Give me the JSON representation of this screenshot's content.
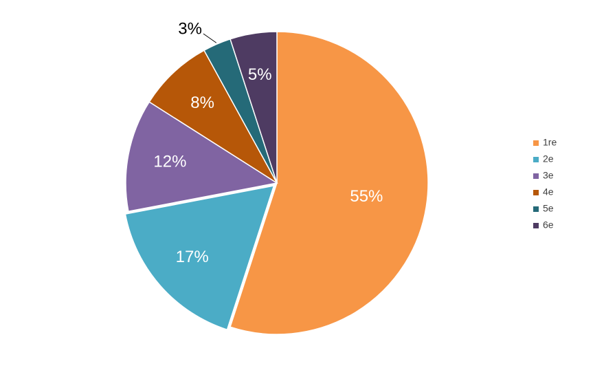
{
  "chart_data": {
    "type": "pie",
    "categories": [
      "1re",
      "2e",
      "3e",
      "4e",
      "5e",
      "6e"
    ],
    "values": [
      55,
      17,
      12,
      8,
      3,
      5
    ],
    "value_labels": [
      "55%",
      "17%",
      "12%",
      "8%",
      "3%",
      "5%"
    ],
    "colors": [
      "#f79646",
      "#4bacc6",
      "#8064a2",
      "#b65708",
      "#256a78",
      "#4e3b62"
    ],
    "legend": "right"
  }
}
